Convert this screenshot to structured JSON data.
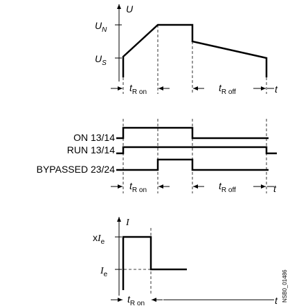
{
  "voltage": {
    "axis_label": "U",
    "levels": [
      {
        "symbol": "U",
        "sub": "N"
      },
      {
        "symbol": "U",
        "sub": "S"
      }
    ]
  },
  "intervals": [
    {
      "symbol": "t",
      "sub": "R on"
    },
    {
      "symbol": "t",
      "sub": "R off"
    }
  ],
  "time_label": "t",
  "relays": [
    "ON 13/14",
    "RUN 13/14",
    "BYPASSED 23/24"
  ],
  "current": {
    "axis_label": "I",
    "levels": [
      {
        "prefix": "x",
        "symbol": "I",
        "sub": "e"
      },
      {
        "symbol": "I",
        "sub": "e"
      }
    ]
  },
  "figure_id": "NSB0_01486"
}
